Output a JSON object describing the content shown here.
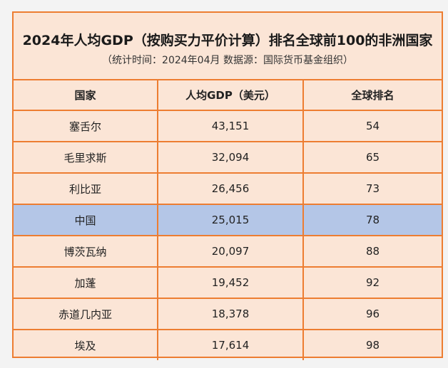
{
  "title": "2024年人均GDP（按购买力平价计算）排名全球前100的非洲国家",
  "subtitle": "（统计时间：2024年04月   数据源：国际货币基金组织）",
  "columns": [
    "国家",
    "人均GDP（美元）",
    "全球排名"
  ],
  "rows": [
    {
      "country": "塞舌尔",
      "gdp": "43,151",
      "rank": "54"
    },
    {
      "country": "毛里求斯",
      "gdp": "32,094",
      "rank": "65"
    },
    {
      "country": "利比亚",
      "gdp": "26,456",
      "rank": "73"
    },
    {
      "country": "中国",
      "gdp": "25,015",
      "rank": "78"
    },
    {
      "country": "博茨瓦纳",
      "gdp": "20,097",
      "rank": "88"
    },
    {
      "country": "加蓬",
      "gdp": "19,452",
      "rank": "92"
    },
    {
      "country": "赤道几内亚",
      "gdp": "18,378",
      "rank": "96"
    },
    {
      "country": "埃及",
      "gdp": "17,614",
      "rank": "98"
    }
  ],
  "highlight_row": 3,
  "colors": {
    "border": "#ed7d31",
    "cell_background": "#fbe5d6",
    "highlight_background": "#b4c6e7",
    "page_background": "#f3f3f3"
  }
}
